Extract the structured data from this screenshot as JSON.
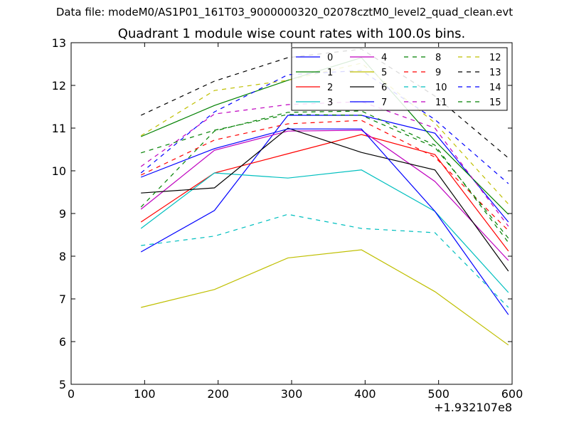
{
  "header": {
    "suptitle": "Data file: modeM0/AS1P01_161T03_9000000320_02078cztM0_level2_quad_clean.evt"
  },
  "chart_data": {
    "type": "line",
    "title": "Quadrant 1 module wise count rates with 100.0s bins.",
    "xlabel": "",
    "ylabel": "",
    "x_offset_label": "+1.932107e8",
    "xlim": [
      0,
      600
    ],
    "ylim": [
      5,
      13
    ],
    "x_ticks": [
      0,
      100,
      200,
      300,
      400,
      500,
      600
    ],
    "y_ticks": [
      5,
      6,
      7,
      8,
      9,
      10,
      11,
      12,
      13
    ],
    "x_tick_labels": [
      "0",
      "100",
      "200",
      "300",
      "400",
      "500",
      "600"
    ],
    "y_tick_labels": [
      "5",
      "6",
      "7",
      "8",
      "9",
      "10",
      "11",
      "12",
      "13"
    ],
    "grid": false,
    "legend_position": "top-right",
    "x": [
      95,
      195,
      295,
      395,
      495,
      595
    ],
    "series": [
      {
        "name": "0",
        "color": "#0000ff",
        "dash": false,
        "values": [
          8.1,
          9.07,
          11.3,
          11.3,
          10.88,
          8.8
        ]
      },
      {
        "name": "1",
        "color": "#008000",
        "dash": false,
        "values": [
          10.8,
          11.53,
          12.12,
          12.65,
          10.7,
          8.98
        ]
      },
      {
        "name": "2",
        "color": "#ff0000",
        "dash": false,
        "values": [
          8.8,
          9.95,
          10.4,
          10.85,
          10.38,
          8.12
        ]
      },
      {
        "name": "3",
        "color": "#00bfbf",
        "dash": false,
        "values": [
          8.65,
          9.95,
          9.83,
          10.02,
          9.05,
          7.15
        ]
      },
      {
        "name": "4",
        "color": "#bf00bf",
        "dash": false,
        "values": [
          9.1,
          10.48,
          10.93,
          10.95,
          9.75,
          7.9
        ]
      },
      {
        "name": "5",
        "color": "#bfbf00",
        "dash": false,
        "values": [
          6.8,
          7.22,
          7.96,
          8.15,
          7.17,
          5.92
        ]
      },
      {
        "name": "6",
        "color": "#000000",
        "dash": false,
        "values": [
          9.48,
          9.6,
          11.0,
          10.43,
          10.02,
          7.65
        ]
      },
      {
        "name": "7",
        "color": "#0000ff",
        "dash": false,
        "values": [
          9.85,
          10.52,
          10.98,
          10.98,
          9.05,
          6.63
        ]
      },
      {
        "name": "8",
        "color": "#008000",
        "dash": true,
        "values": [
          9.15,
          10.93,
          11.37,
          11.4,
          10.6,
          8.32
        ]
      },
      {
        "name": "9",
        "color": "#ff0000",
        "dash": true,
        "values": [
          9.9,
          10.72,
          11.1,
          11.18,
          10.32,
          8.6
        ]
      },
      {
        "name": "10",
        "color": "#00bfbf",
        "dash": true,
        "values": [
          8.25,
          8.47,
          8.98,
          8.65,
          8.55,
          6.8
        ]
      },
      {
        "name": "11",
        "color": "#bf00bf",
        "dash": true,
        "values": [
          10.1,
          11.33,
          11.55,
          11.62,
          11.0,
          8.7
        ]
      },
      {
        "name": "12",
        "color": "#bfbf00",
        "dash": true,
        "values": [
          10.82,
          11.88,
          12.12,
          12.52,
          11.12,
          9.22
        ]
      },
      {
        "name": "13",
        "color": "#000000",
        "dash": true,
        "values": [
          11.3,
          12.1,
          12.65,
          12.85,
          11.75,
          10.3
        ]
      },
      {
        "name": "14",
        "color": "#0000ff",
        "dash": true,
        "values": [
          9.95,
          11.38,
          12.25,
          12.35,
          11.2,
          9.7
        ]
      },
      {
        "name": "15",
        "color": "#008000",
        "dash": true,
        "values": [
          10.42,
          10.95,
          11.32,
          11.3,
          10.55,
          8.42
        ]
      }
    ]
  }
}
